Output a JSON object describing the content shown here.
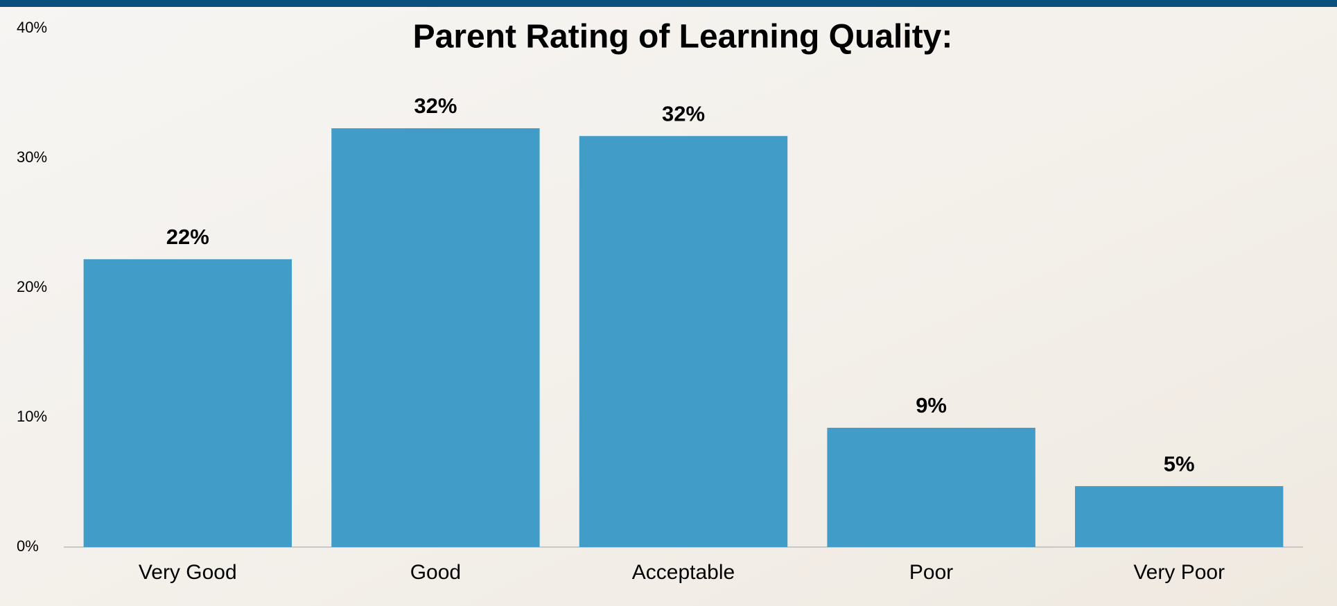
{
  "chart_data": {
    "type": "bar",
    "title": "Parent Rating of Learning Quality:",
    "categories": [
      "Very Good",
      "Good",
      "Acceptable",
      "Poor",
      "Very Poor"
    ],
    "values": [
      22.2,
      32.3,
      31.7,
      9.2,
      4.7
    ],
    "value_labels": [
      "22%",
      "32%",
      "32%",
      "9%",
      "5%"
    ],
    "color": "#429cc8",
    "ylim": [
      0,
      40
    ],
    "yticks": [
      {
        "value": 0,
        "label": "0%"
      },
      {
        "value": 10,
        "label": "10%"
      },
      {
        "value": 20,
        "label": "20%"
      },
      {
        "value": 30,
        "label": "30%"
      },
      {
        "value": 40,
        "label": "40%"
      }
    ],
    "grid": false
  }
}
